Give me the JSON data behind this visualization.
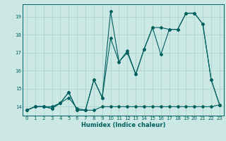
{
  "title": "",
  "xlabel": "Humidex (Indice chaleur)",
  "bg_color": "#cce8e4",
  "grid_color": "#aad4d0",
  "line_color": "#006060",
  "xlim": [
    -0.5,
    23.5
  ],
  "ylim": [
    13.5,
    19.7
  ],
  "yticks": [
    14,
    15,
    16,
    17,
    18,
    19
  ],
  "xticks": [
    0,
    1,
    2,
    3,
    4,
    5,
    6,
    7,
    8,
    9,
    10,
    11,
    12,
    13,
    14,
    15,
    16,
    17,
    18,
    19,
    20,
    21,
    22,
    23
  ],
  "series1_x": [
    0,
    1,
    2,
    3,
    4,
    5,
    6,
    7,
    8,
    9,
    10,
    11,
    12,
    13,
    14,
    15,
    16,
    17,
    18,
    19,
    20,
    21,
    22,
    23
  ],
  "series1_y": [
    13.8,
    14.0,
    14.0,
    14.0,
    14.2,
    14.5,
    13.9,
    13.8,
    13.8,
    14.0,
    14.0,
    14.0,
    14.0,
    14.0,
    14.0,
    14.0,
    14.0,
    14.0,
    14.0,
    14.0,
    14.0,
    14.0,
    14.0,
    14.1
  ],
  "series2_x": [
    0,
    1,
    2,
    3,
    4,
    5,
    6,
    7,
    8,
    9,
    10,
    11,
    12,
    13,
    14,
    15,
    16,
    17,
    18,
    19,
    20,
    21,
    22,
    23
  ],
  "series2_y": [
    13.8,
    14.0,
    14.0,
    13.9,
    14.2,
    14.8,
    13.8,
    13.8,
    15.5,
    14.5,
    19.3,
    16.5,
    17.0,
    15.8,
    17.2,
    18.4,
    16.9,
    18.3,
    18.3,
    19.2,
    19.2,
    18.6,
    15.5,
    14.1
  ],
  "series3_x": [
    0,
    1,
    2,
    3,
    4,
    5,
    6,
    7,
    8,
    9,
    10,
    11,
    12,
    13,
    14,
    15,
    16,
    17,
    18,
    19,
    20,
    21,
    22,
    23
  ],
  "series3_y": [
    13.8,
    14.0,
    14.0,
    13.9,
    14.2,
    14.8,
    13.8,
    13.8,
    15.5,
    14.5,
    17.8,
    16.5,
    17.1,
    15.8,
    17.2,
    18.4,
    18.4,
    18.3,
    18.3,
    19.2,
    19.2,
    18.6,
    15.5,
    14.1
  ],
  "tick_fontsize": 5,
  "xlabel_fontsize": 6,
  "marker_size": 2.0,
  "line_width": 0.8
}
